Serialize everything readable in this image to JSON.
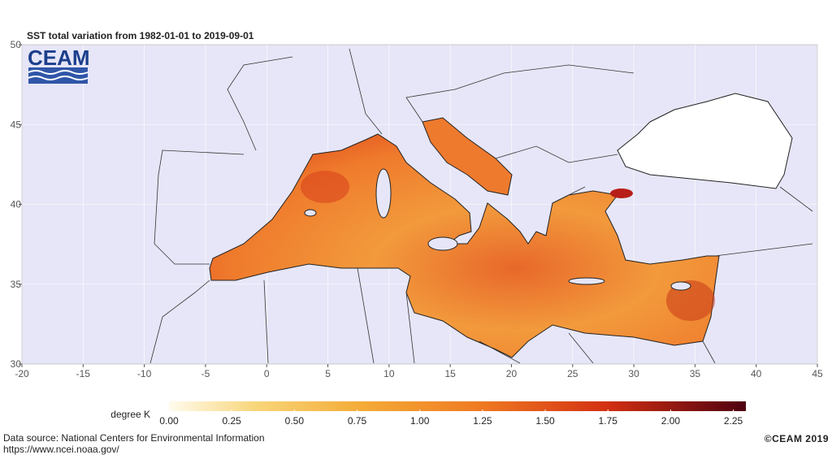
{
  "title": "SST total variation from  1982-01-01 to 2019-09-01",
  "logo": "CEAM",
  "map": {
    "xlim": [
      -20,
      45
    ],
    "ylim": [
      30,
      50
    ],
    "xticks": [
      -20,
      -15,
      -10,
      -5,
      0,
      5,
      10,
      15,
      20,
      25,
      30,
      35,
      40,
      45
    ],
    "yticks": [
      30,
      35,
      40,
      45,
      50
    ]
  },
  "colorbar": {
    "label": "degree K",
    "lim": [
      0,
      2.3
    ],
    "ticks": [
      {
        "value": 0,
        "label": "0.00"
      },
      {
        "value": 0.25,
        "label": "0.25"
      },
      {
        "value": 0.5,
        "label": "0.50"
      },
      {
        "value": 0.75,
        "label": "0.75"
      },
      {
        "value": 1,
        "label": "1.00"
      },
      {
        "value": 1.25,
        "label": "1.25"
      },
      {
        "value": 1.5,
        "label": "1.50"
      },
      {
        "value": 1.75,
        "label": "1.75"
      },
      {
        "value": 2,
        "label": "2.00"
      },
      {
        "value": 2.25,
        "label": "2.25"
      }
    ]
  },
  "source": [
    "Data source: National Centers for Environmental Information",
    "https://www.ncei.noaa.gov/"
  ],
  "copyright": "©CEAM 2019"
}
